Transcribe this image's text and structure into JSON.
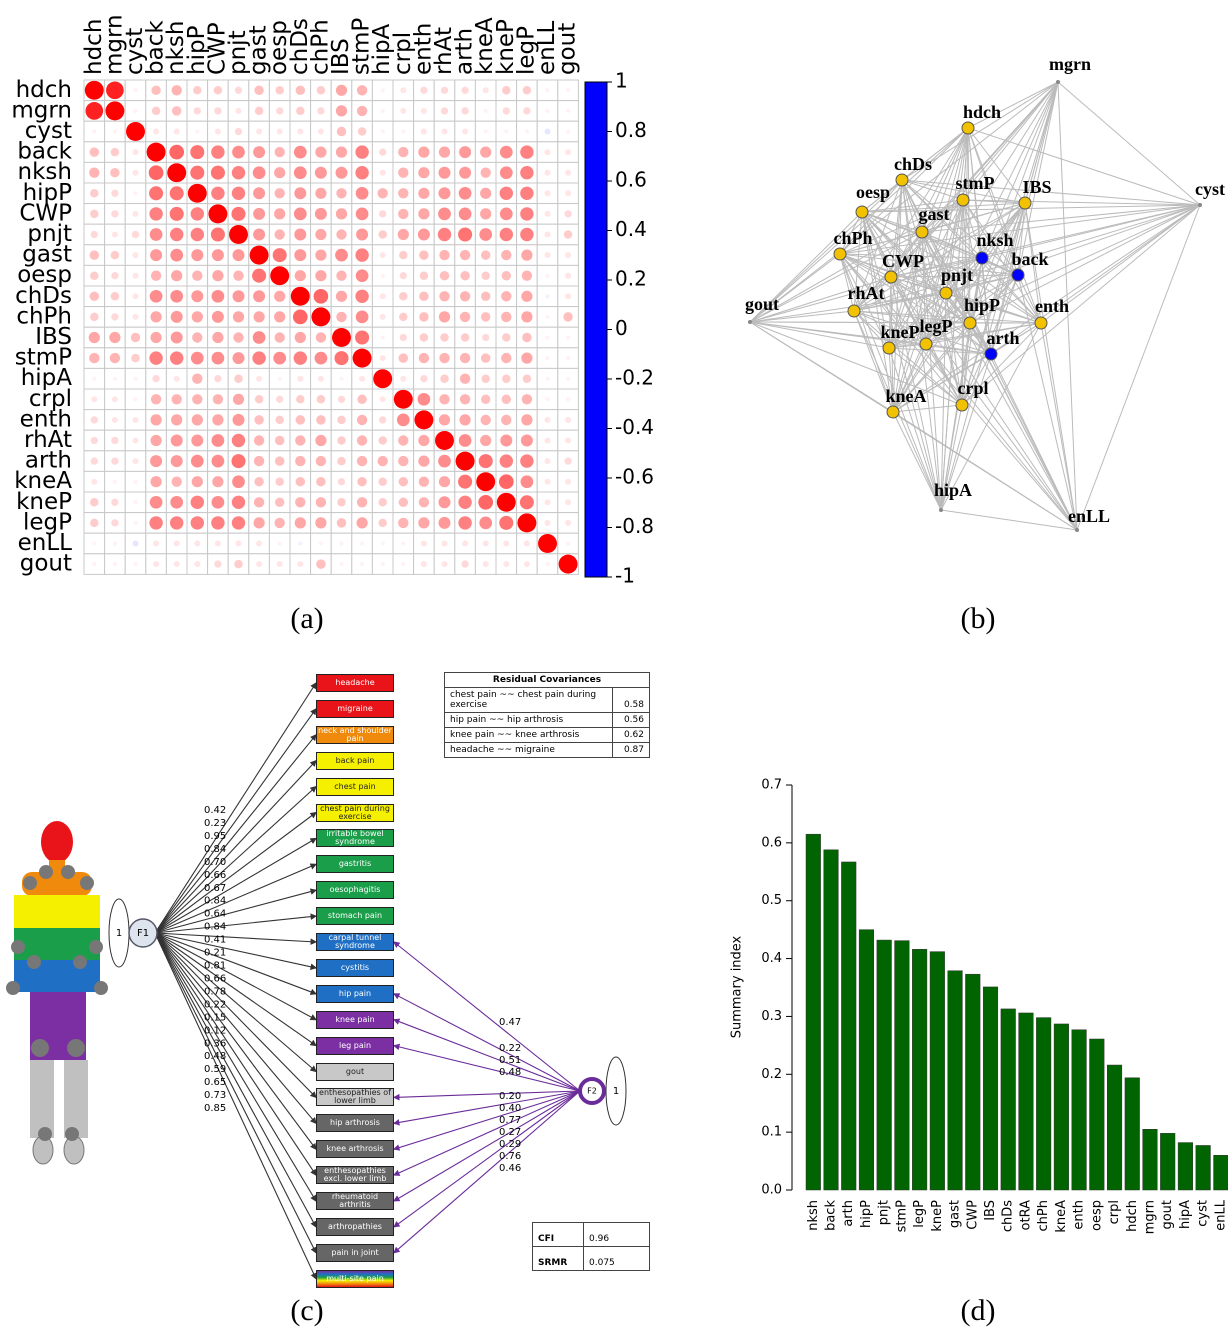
{
  "captions": [
    "(a)",
    "(b)",
    "(c)",
    "(d)"
  ],
  "chart_data": [
    {
      "type": "corrplot",
      "variables": [
        "hdch",
        "mgrn",
        "cyst",
        "back",
        "nksh",
        "hipP",
        "CWP",
        "pnjt",
        "gast",
        "oesp",
        "chDs",
        "chPh",
        "IBS",
        "stmP",
        "hipA",
        "crpl",
        "enth",
        "rhAt",
        "arth",
        "kneA",
        "kneP",
        "legP",
        "enLL",
        "gout"
      ],
      "matrix": [
        [
          1,
          0.87,
          0.05,
          0.25,
          0.3,
          0.2,
          0.2,
          0.15,
          0.25,
          0.2,
          0.25,
          0.2,
          0.35,
          0.3,
          0.05,
          0.1,
          0.15,
          0.15,
          0.15,
          0.1,
          0.2,
          0.2,
          0.05,
          0.05
        ],
        [
          0.87,
          1,
          0.05,
          0.2,
          0.25,
          0.15,
          0.15,
          0.1,
          0.2,
          0.15,
          0.2,
          0.15,
          0.35,
          0.3,
          0.05,
          0.1,
          0.1,
          0.15,
          0.15,
          0.05,
          0.15,
          0.15,
          0.05,
          0.05
        ],
        [
          0.05,
          0.05,
          1,
          0.1,
          0.1,
          0.05,
          0.1,
          0.15,
          0.1,
          0.1,
          0.1,
          0.1,
          0.25,
          0.2,
          0.05,
          0.05,
          0.1,
          0.1,
          0.1,
          0.05,
          0.05,
          0.05,
          -0.1,
          0.05
        ],
        [
          0.25,
          0.2,
          0.1,
          1,
          0.6,
          0.55,
          0.5,
          0.45,
          0.4,
          0.3,
          0.45,
          0.35,
          0.35,
          0.5,
          0.15,
          0.3,
          0.35,
          0.35,
          0.4,
          0.35,
          0.45,
          0.5,
          0.1,
          0.1
        ],
        [
          0.3,
          0.25,
          0.1,
          0.6,
          1,
          0.55,
          0.55,
          0.5,
          0.45,
          0.35,
          0.45,
          0.4,
          0.4,
          0.5,
          0.1,
          0.3,
          0.35,
          0.4,
          0.4,
          0.3,
          0.45,
          0.5,
          0.1,
          0.1
        ],
        [
          0.2,
          0.15,
          0.05,
          0.55,
          0.55,
          1,
          0.5,
          0.5,
          0.4,
          0.3,
          0.4,
          0.35,
          0.3,
          0.45,
          0.3,
          0.3,
          0.35,
          0.4,
          0.45,
          0.35,
          0.5,
          0.5,
          0.1,
          0.1
        ],
        [
          0.2,
          0.15,
          0.1,
          0.5,
          0.55,
          0.5,
          1,
          0.55,
          0.4,
          0.35,
          0.45,
          0.4,
          0.35,
          0.45,
          0.15,
          0.3,
          0.35,
          0.45,
          0.45,
          0.35,
          0.45,
          0.5,
          0.1,
          0.15
        ],
        [
          0.15,
          0.1,
          0.15,
          0.45,
          0.5,
          0.5,
          0.55,
          1,
          0.4,
          0.3,
          0.4,
          0.35,
          0.3,
          0.4,
          0.2,
          0.35,
          0.4,
          0.5,
          0.55,
          0.45,
          0.5,
          0.5,
          0.1,
          0.2
        ],
        [
          0.25,
          0.2,
          0.1,
          0.4,
          0.45,
          0.4,
          0.4,
          0.4,
          1,
          0.55,
          0.4,
          0.35,
          0.45,
          0.5,
          0.1,
          0.2,
          0.25,
          0.3,
          0.3,
          0.25,
          0.3,
          0.35,
          0.1,
          0.1
        ],
        [
          0.2,
          0.15,
          0.1,
          0.3,
          0.35,
          0.3,
          0.35,
          0.3,
          0.55,
          1,
          0.35,
          0.35,
          0.3,
          0.45,
          0.05,
          0.15,
          0.2,
          0.25,
          0.25,
          0.2,
          0.25,
          0.3,
          0.05,
          0.1
        ],
        [
          0.25,
          0.2,
          0.1,
          0.45,
          0.45,
          0.4,
          0.45,
          0.4,
          0.4,
          0.35,
          1,
          0.6,
          0.35,
          0.5,
          0.1,
          0.2,
          0.25,
          0.3,
          0.3,
          0.25,
          0.3,
          0.35,
          -0.05,
          0.1
        ],
        [
          0.2,
          0.15,
          0.1,
          0.35,
          0.4,
          0.35,
          0.4,
          0.35,
          0.35,
          0.35,
          0.6,
          1,
          0.3,
          0.45,
          0.1,
          0.2,
          0.25,
          0.35,
          0.3,
          0.25,
          0.3,
          0.35,
          0.05,
          0.25
        ],
        [
          0.35,
          0.35,
          0.25,
          0.35,
          0.4,
          0.3,
          0.35,
          0.3,
          0.45,
          0.3,
          0.35,
          0.3,
          1,
          0.55,
          0.05,
          0.15,
          0.2,
          0.2,
          0.2,
          0.15,
          0.2,
          0.25,
          0.05,
          0.05
        ],
        [
          0.3,
          0.3,
          0.2,
          0.5,
          0.5,
          0.45,
          0.45,
          0.4,
          0.5,
          0.45,
          0.5,
          0.45,
          0.55,
          1,
          0.1,
          0.25,
          0.3,
          0.3,
          0.3,
          0.25,
          0.3,
          0.35,
          0.05,
          0.05
        ],
        [
          0.05,
          0.05,
          0.05,
          0.15,
          0.1,
          0.3,
          0.15,
          0.2,
          0.1,
          0.05,
          0.1,
          0.1,
          0.05,
          0.1,
          1,
          0.1,
          0.15,
          0.2,
          0.3,
          0.2,
          0.2,
          0.2,
          0.05,
          0.05
        ],
        [
          0.1,
          0.1,
          0.05,
          0.3,
          0.3,
          0.3,
          0.3,
          0.35,
          0.2,
          0.15,
          0.2,
          0.2,
          0.15,
          0.25,
          0.1,
          1,
          0.45,
          0.3,
          0.3,
          0.25,
          0.25,
          0.3,
          0.05,
          0.05
        ],
        [
          0.15,
          0.1,
          0.1,
          0.35,
          0.35,
          0.35,
          0.35,
          0.4,
          0.25,
          0.2,
          0.25,
          0.25,
          0.2,
          0.3,
          0.15,
          0.45,
          1,
          0.35,
          0.35,
          0.3,
          0.3,
          0.35,
          0.1,
          0.1
        ],
        [
          0.15,
          0.15,
          0.1,
          0.35,
          0.4,
          0.4,
          0.45,
          0.5,
          0.3,
          0.25,
          0.3,
          0.35,
          0.2,
          0.3,
          0.2,
          0.3,
          0.35,
          1,
          0.45,
          0.35,
          0.4,
          0.4,
          0.1,
          0.1
        ],
        [
          0.15,
          0.15,
          0.1,
          0.4,
          0.4,
          0.45,
          0.45,
          0.55,
          0.3,
          0.25,
          0.3,
          0.3,
          0.2,
          0.3,
          0.3,
          0.3,
          0.35,
          0.45,
          1,
          0.55,
          0.5,
          0.5,
          0.1,
          0.15
        ],
        [
          0.1,
          0.05,
          0.05,
          0.35,
          0.3,
          0.35,
          0.35,
          0.45,
          0.25,
          0.2,
          0.25,
          0.25,
          0.15,
          0.25,
          0.2,
          0.25,
          0.3,
          0.35,
          0.55,
          1,
          0.6,
          0.45,
          0.1,
          0.1
        ],
        [
          0.2,
          0.15,
          0.05,
          0.45,
          0.45,
          0.5,
          0.45,
          0.5,
          0.3,
          0.25,
          0.3,
          0.3,
          0.2,
          0.3,
          0.2,
          0.25,
          0.3,
          0.4,
          0.5,
          0.6,
          1,
          0.55,
          0.1,
          0.1
        ],
        [
          0.2,
          0.15,
          0.05,
          0.5,
          0.5,
          0.5,
          0.5,
          0.5,
          0.35,
          0.3,
          0.35,
          0.35,
          0.25,
          0.35,
          0.2,
          0.3,
          0.35,
          0.4,
          0.5,
          0.45,
          0.55,
          1,
          0.1,
          0.1
        ],
        [
          0.05,
          0.05,
          -0.1,
          0.1,
          0.1,
          0.1,
          0.1,
          0.1,
          0.1,
          0.05,
          -0.05,
          0.05,
          0.05,
          0.05,
          0.05,
          0.05,
          0.1,
          0.1,
          0.1,
          0.1,
          0.1,
          0.1,
          1,
          0.05
        ],
        [
          0.05,
          0.05,
          0.05,
          0.1,
          0.1,
          0.1,
          0.15,
          0.2,
          0.1,
          0.1,
          0.1,
          0.25,
          0.05,
          0.05,
          0.05,
          0.05,
          0.1,
          0.1,
          0.15,
          0.1,
          0.1,
          0.1,
          0.05,
          1
        ]
      ],
      "clim": [
        -1,
        1
      ],
      "cticks": [
        1,
        0.8,
        0.6,
        0.4,
        0.2,
        0,
        -0.2,
        -0.4,
        -0.6,
        -0.8,
        -1
      ],
      "colors": [
        "#0000ff",
        "#ffffff",
        "#ff0000"
      ]
    },
    {
      "type": "network",
      "edge_color": "#bbbbbb",
      "nodes": [
        {
          "label": "mgrn",
          "color": "#888888"
        },
        {
          "label": "hdch",
          "color": "#f2c200"
        },
        {
          "label": "cyst",
          "color": "#888888"
        },
        {
          "label": "chDs",
          "color": "#f2c200"
        },
        {
          "label": "oesp",
          "color": "#f2c200"
        },
        {
          "label": "stmP",
          "color": "#f2c200"
        },
        {
          "label": "IBS",
          "color": "#f2c200"
        },
        {
          "label": "gast",
          "color": "#f2c200"
        },
        {
          "label": "chPh",
          "color": "#f2c200"
        },
        {
          "label": "nksh",
          "color": "#0000ff"
        },
        {
          "label": "back",
          "color": "#0000ff"
        },
        {
          "label": "CWP",
          "color": "#f2c200"
        },
        {
          "label": "pnjt",
          "color": "#f2c200"
        },
        {
          "label": "rhAt",
          "color": "#f2c200"
        },
        {
          "label": "gout",
          "color": "#888888"
        },
        {
          "label": "hipP",
          "color": "#f2c200"
        },
        {
          "label": "enth",
          "color": "#f2c200"
        },
        {
          "label": "kneP",
          "color": "#f2c200"
        },
        {
          "label": "legP",
          "color": "#f2c200"
        },
        {
          "label": "arth",
          "color": "#0000ff"
        },
        {
          "label": "kneA",
          "color": "#f2c200"
        },
        {
          "label": "crpl",
          "color": "#f2c200"
        },
        {
          "label": "hipA",
          "color": "#888888"
        },
        {
          "label": "enLL",
          "color": "#888888"
        }
      ]
    },
    {
      "type": "bar",
      "ylabel": "Summary index",
      "color": "#006400",
      "categories": [
        "nksh",
        "back",
        "arth",
        "hipP",
        "pnjt",
        "stmP",
        "legP",
        "kneP",
        "gast",
        "CWP",
        "IBS",
        "chDs",
        "otRA",
        "chPh",
        "kneA",
        "enth",
        "oesp",
        "crpl",
        "hdch",
        "mgrn",
        "gout",
        "hipA",
        "cyst",
        "enLL"
      ],
      "values": [
        0.615,
        0.588,
        0.567,
        0.45,
        0.432,
        0.431,
        0.416,
        0.412,
        0.379,
        0.373,
        0.351,
        0.313,
        0.306,
        0.298,
        0.287,
        0.277,
        0.261,
        0.216,
        0.194,
        0.105,
        0.098,
        0.082,
        0.077,
        0.06
      ],
      "ylim": [
        0,
        0.7
      ],
      "yticks": [
        {
          "value": 0,
          "label": "0.0"
        },
        0.1,
        0.2,
        0.3,
        0.4,
        0.5,
        0.6,
        0.7
      ]
    }
  ],
  "sem_diagram": {
    "indicators": [
      {
        "label": "headache",
        "color": "#e8141a"
      },
      {
        "label": "migraine",
        "color": "#e8141a"
      },
      {
        "label": "neck and shoulder pain",
        "color": "#f08a0c"
      },
      {
        "label": "back pain",
        "color": "#f5f000"
      },
      {
        "label": "chest pain",
        "color": "#f5f000"
      },
      {
        "label": "chest pain during exercise",
        "color": "#f5f000"
      },
      {
        "label": "irritable bowel syndrome",
        "color": "#1a9e4a"
      },
      {
        "label": "gastritis",
        "color": "#1a9e4a"
      },
      {
        "label": "oesophagitis",
        "color": "#1a9e4a"
      },
      {
        "label": "stomach pain",
        "color": "#1a9e4a"
      },
      {
        "label": "carpal tunnel syndrome",
        "color": "#1f6fc4"
      },
      {
        "label": "cystitis",
        "color": "#1f6fc4"
      },
      {
        "label": "hip pain",
        "color": "#1f6fc4"
      },
      {
        "label": "knee pain",
        "color": "#7b2fa3"
      },
      {
        "label": "leg pain",
        "color": "#7b2fa3"
      },
      {
        "label": "gout",
        "color": "#c8c8c8"
      },
      {
        "label": "enthesopathies of lower limb",
        "color": "#c8c8c8"
      },
      {
        "label": "hip arthrosis",
        "color": "#666666"
      },
      {
        "label": "knee arthrosis",
        "color": "#666666"
      },
      {
        "label": "enthesopathies excl. lower limb",
        "color": "#666666"
      },
      {
        "label": "rheumatoid arthritis",
        "color": "#666666"
      },
      {
        "label": "arthropathies",
        "color": "#666666"
      },
      {
        "label": "pain in joint",
        "color": "#666666"
      },
      {
        "label": "multi-site pain",
        "color": "#666666"
      }
    ],
    "factors": [
      {
        "label": "F1",
        "variance": "1",
        "loadings": [
          "0.42",
          "0.23",
          "0.95",
          "0.84",
          "0.70",
          "0.66",
          "0.67",
          "0.84",
          "0.64",
          "0.84",
          "0.41",
          "0.21",
          "0.81",
          "0.66",
          "0.78",
          "0.22",
          "0.15",
          "0.12",
          "0.36",
          "0.48",
          "0.59",
          "0.65",
          "0.73",
          "0.85"
        ]
      },
      {
        "label": "F2",
        "variance": "1",
        "loadings": [
          null,
          null,
          null,
          null,
          null,
          null,
          null,
          null,
          null,
          null,
          "0.47",
          null,
          "0.22",
          "0.51",
          "0.48",
          null,
          "0.20",
          "0.40",
          "0.77",
          "0.27",
          "0.29",
          "0.76",
          "0.46",
          null
        ]
      }
    ],
    "residual_table": {
      "title": "Residual Covariances",
      "rows": [
        [
          "chest pain ~~ chest pain during exercise",
          "0.58"
        ],
        [
          "hip pain ~~ hip arthrosis",
          "0.56"
        ],
        [
          "knee pain ~~ knee arthrosis",
          "0.62"
        ],
        [
          "headache ~~ migraine",
          "0.87"
        ]
      ]
    },
    "fit_table": {
      "rows": [
        [
          "CFI",
          "0.96"
        ],
        [
          "SRMR",
          "0.075"
        ]
      ]
    }
  }
}
